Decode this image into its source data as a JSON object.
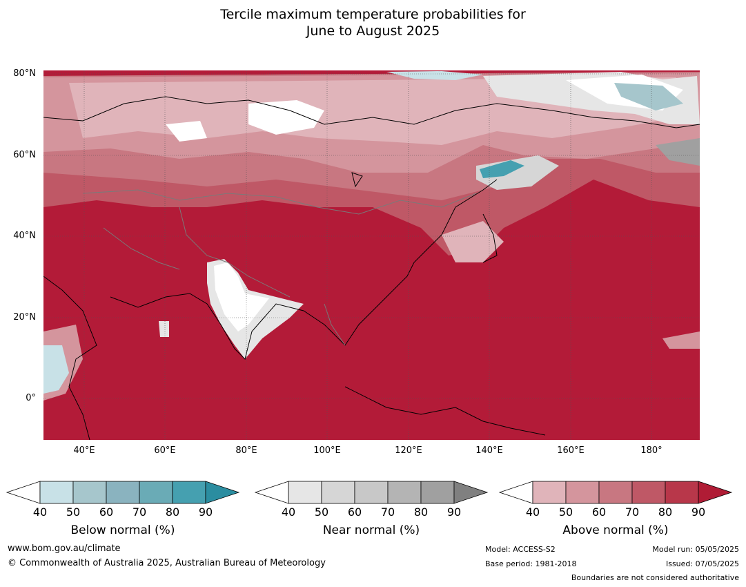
{
  "title": {
    "line1": "Tercile maximum temperature probabilities for",
    "line2": "June to August 2025"
  },
  "map": {
    "lat_labels": [
      "80°N",
      "60°N",
      "40°N",
      "20°N",
      "0°"
    ],
    "lon_labels": [
      "40°E",
      "60°E",
      "80°E",
      "100°E",
      "120°E",
      "140°E",
      "160°E",
      "180°"
    ],
    "extent": {
      "lon_min": 30,
      "lon_max": 192,
      "lat_min": -10,
      "lat_max": 81
    }
  },
  "colorbars": [
    {
      "name": "below",
      "label": "Below normal (%)",
      "ticks": [
        "40",
        "50",
        "60",
        "70",
        "80",
        "90"
      ],
      "colors": [
        "#c8e1e7",
        "#a6c6cc",
        "#8ab3bf",
        "#6aabb6",
        "#45a0b0",
        "#2b8da0"
      ]
    },
    {
      "name": "near",
      "label": "Near normal (%)",
      "ticks": [
        "40",
        "50",
        "60",
        "70",
        "80",
        "90"
      ],
      "colors": [
        "#e6e6e6",
        "#d6d6d6",
        "#c8c8c8",
        "#b4b4b4",
        "#a0a0a0",
        "#808080"
      ]
    },
    {
      "name": "above",
      "label": "Above normal (%)",
      "ticks": [
        "40",
        "50",
        "60",
        "70",
        "80",
        "90"
      ],
      "colors": [
        "#e0b4ba",
        "#d4959d",
        "#c87781",
        "#bf5866",
        "#b8374a",
        "#b01c35"
      ]
    }
  ],
  "footer": {
    "website": "www.bom.gov.au/climate",
    "copyright": "© Commonwealth of Australia 2025, Australian Bureau of Meteorology",
    "model": "Model: ACCESS-S2",
    "base_period": "Base period: 1981-2018",
    "model_run": "Model run: 05/05/2025",
    "issued": "Issued: 07/05/2025",
    "disclaimer": "Boundaries are not considered authoritative"
  }
}
